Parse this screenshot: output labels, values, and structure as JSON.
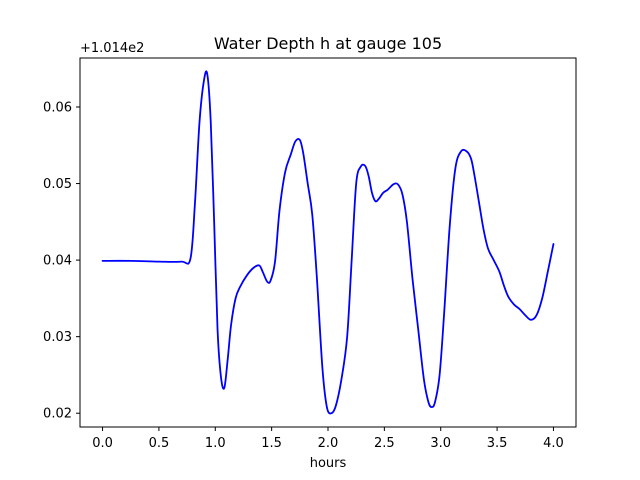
{
  "chart_data": {
    "type": "line",
    "title": "Water Depth h at gauge 105",
    "xlabel": "hours",
    "ylabel": "",
    "y_offset_label": "+1.014e2",
    "xlim": [
      -0.2,
      4.2
    ],
    "ylim": [
      0.0182,
      0.0664
    ],
    "xticks": [
      0.0,
      0.5,
      1.0,
      1.5,
      2.0,
      2.5,
      3.0,
      3.5,
      4.0
    ],
    "xtick_labels": [
      "0.0",
      "0.5",
      "1.0",
      "1.5",
      "2.0",
      "2.5",
      "3.0",
      "3.5",
      "4.0"
    ],
    "yticks": [
      0.02,
      0.03,
      0.04,
      0.05,
      0.06
    ],
    "ytick_labels": [
      "0.02",
      "0.03",
      "0.04",
      "0.05",
      "0.06"
    ],
    "grid": false,
    "line_color": "#0000ff",
    "series": [
      {
        "x": [
          0.0,
          0.25,
          0.5,
          0.7,
          0.78,
          0.82,
          0.86,
          0.9,
          0.93,
          0.96,
          0.99,
          1.02,
          1.05,
          1.08,
          1.11,
          1.14,
          1.18,
          1.22,
          1.28,
          1.34,
          1.39,
          1.42,
          1.46,
          1.49,
          1.53,
          1.57,
          1.62,
          1.67,
          1.71,
          1.75,
          1.78,
          1.82,
          1.86,
          1.9,
          1.95,
          1.99,
          2.03,
          2.07,
          2.12,
          2.17,
          2.21,
          2.25,
          2.29,
          2.33,
          2.36,
          2.39,
          2.42,
          2.45,
          2.49,
          2.53,
          2.58,
          2.62,
          2.66,
          2.7,
          2.75,
          2.8,
          2.85,
          2.89,
          2.92,
          2.95,
          2.99,
          3.03,
          3.08,
          3.13,
          3.18,
          3.23,
          3.27,
          3.3,
          3.34,
          3.38,
          3.42,
          3.47,
          3.52,
          3.56,
          3.6,
          3.65,
          3.7,
          3.75,
          3.8,
          3.85,
          3.9,
          3.95,
          4.0
        ],
        "y": [
          0.0399,
          0.0399,
          0.0398,
          0.0398,
          0.0402,
          0.0475,
          0.058,
          0.0635,
          0.0642,
          0.058,
          0.045,
          0.031,
          0.0248,
          0.0233,
          0.027,
          0.0315,
          0.035,
          0.0365,
          0.038,
          0.039,
          0.0393,
          0.0385,
          0.0372,
          0.0373,
          0.0398,
          0.0465,
          0.0515,
          0.0538,
          0.0555,
          0.0557,
          0.054,
          0.05,
          0.046,
          0.038,
          0.026,
          0.0208,
          0.02,
          0.021,
          0.0245,
          0.03,
          0.04,
          0.05,
          0.0522,
          0.0523,
          0.051,
          0.0488,
          0.0477,
          0.048,
          0.0488,
          0.0492,
          0.0499,
          0.0499,
          0.0486,
          0.045,
          0.0375,
          0.031,
          0.0245,
          0.0215,
          0.0208,
          0.0215,
          0.025,
          0.033,
          0.0445,
          0.052,
          0.0542,
          0.0542,
          0.0532,
          0.051,
          0.0475,
          0.044,
          0.0415,
          0.04,
          0.0385,
          0.0367,
          0.0352,
          0.0342,
          0.0336,
          0.0328,
          0.0322,
          0.0328,
          0.035,
          0.0385,
          0.0421
        ]
      }
    ]
  }
}
